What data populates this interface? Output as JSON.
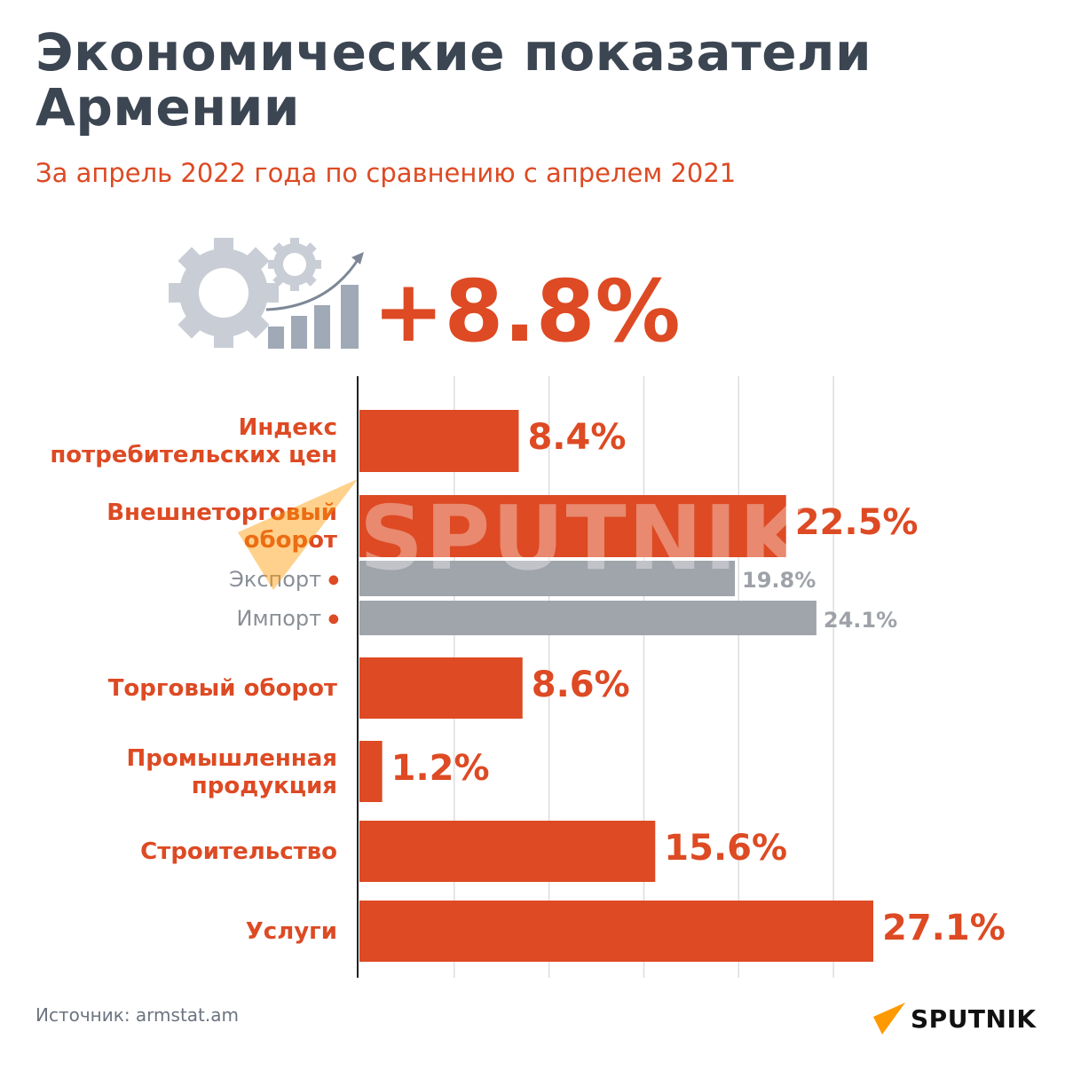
{
  "header": {
    "title_line1": "Экономические показатели",
    "title_line2": "Армении",
    "subtitle": "За апрель 2022 года по сравнению с апрелем 2021",
    "headline_value": "+8.8%",
    "icon": "gears-growth-chart-icon"
  },
  "chart_data": {
    "type": "bar",
    "orientation": "horizontal",
    "unit": "%",
    "xlim": [
      0,
      27.1
    ],
    "grid_ticks": [
      0,
      5,
      10,
      15,
      20,
      25
    ],
    "grid": true,
    "categories": [
      {
        "lines": [
          "Индекс",
          "потребительских цен"
        ],
        "value": 8.4,
        "label": "8.4%",
        "kind": "main"
      },
      {
        "lines": [
          "Внешнеторговый",
          "оборот"
        ],
        "value": 22.5,
        "label": "22.5%",
        "kind": "main"
      },
      {
        "lines": [
          "Экспорт"
        ],
        "value": 19.8,
        "label": "19.8%",
        "kind": "sub"
      },
      {
        "lines": [
          "Импорт"
        ],
        "value": 24.1,
        "label": "24.1%",
        "kind": "sub"
      },
      {
        "lines": [
          "Торговый оборот"
        ],
        "value": 8.6,
        "label": "8.6%",
        "kind": "main"
      },
      {
        "lines": [
          "Промышленная",
          "продукция"
        ],
        "value": 1.2,
        "label": "1.2%",
        "kind": "main"
      },
      {
        "lines": [
          "Строительство"
        ],
        "value": 15.6,
        "label": "15.6%",
        "kind": "main"
      },
      {
        "lines": [
          "Услуги"
        ],
        "value": 27.1,
        "label": "27.1%",
        "kind": "main"
      }
    ],
    "colors": {
      "main": "#dd4a23",
      "sub": "#a0a4ab",
      "grid": "#dddddd",
      "axis": "#222222"
    }
  },
  "footer": {
    "source": "Источник: armstat.am",
    "logo_text": "SPUTNIK",
    "logo_color": "#ff9900"
  },
  "watermark": "SPUTNIK"
}
